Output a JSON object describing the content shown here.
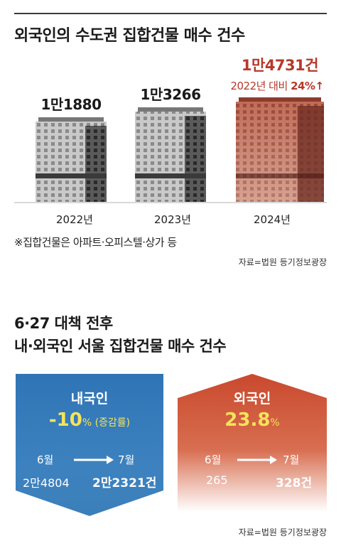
{
  "chart_data": {
    "type": "bar",
    "title": "외국인의 수도권 집합건물 매수 건수",
    "categories": [
      "2022년",
      "2023년",
      "2024년"
    ],
    "values": [
      11880,
      13266,
      14731
    ],
    "value_labels": [
      "1만1880",
      "1만3266",
      "1만4731건"
    ],
    "highlight": {
      "label": "2022년 대비",
      "change": "24%↑"
    },
    "note": "※집합건물은 아파트·오피스텔·상가 등",
    "source": "자료=법원 등기정보광장"
  },
  "section2": {
    "title_line1": "6·27 대책 전후",
    "title_line2": "내·외국인 서울 집합건물 매수 건수",
    "domestic": {
      "title": "내국인",
      "change": "-10",
      "change_unit": "% (증감률)",
      "from_label": "6월",
      "to_label": "7월",
      "from_value": "2만4804",
      "to_value": "2만2321건",
      "color": "#3d82bf"
    },
    "foreign": {
      "title": "외국인",
      "change": "23.8",
      "change_unit": "%",
      "from_label": "6월",
      "to_label": "7월",
      "from_value": "265",
      "to_value": "328건",
      "color": "#d05a3c"
    },
    "source": "자료=법원 등기정보광장"
  },
  "colors": {
    "accent_red": "#b5392c",
    "change_yellow": "#f5e35a"
  }
}
